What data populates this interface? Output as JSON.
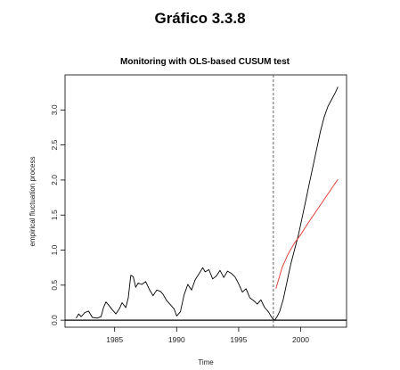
{
  "figure_title": "Gráfico 3.3.8",
  "chart_data": {
    "type": "line",
    "title": "Monitoring with OLS-based CUSUM test",
    "xlabel": "Time",
    "ylabel": "empirical fluctuation process",
    "xlim": [
      1981.0,
      2003.7
    ],
    "ylim": [
      -0.1,
      3.5
    ],
    "x_ticks": [
      1985,
      1990,
      1995,
      2000
    ],
    "x_tick_labels": [
      "1985",
      "1990",
      "1995",
      "2000"
    ],
    "y_ticks": [
      0.0,
      0.5,
      1.0,
      1.5,
      2.0,
      2.5,
      3.0
    ],
    "y_tick_labels": [
      "0.0",
      "0.5",
      "1.0",
      "1.5",
      "2.0",
      "2.5",
      "3.0"
    ],
    "grid": false,
    "legend": "none",
    "reference_lines": [
      {
        "orientation": "horizontal",
        "y": 0.0,
        "style": "solid",
        "color": "#000000"
      },
      {
        "orientation": "vertical",
        "x": 1997.8,
        "style": "dashed",
        "color": "#555555"
      }
    ],
    "series": [
      {
        "color": "#000000",
        "x": [
          1981.9,
          1982.1,
          1982.3,
          1982.6,
          1982.9,
          1983.2,
          1983.6,
          1983.9,
          1984.1,
          1984.3,
          1984.5,
          1984.8,
          1985.1,
          1985.4,
          1985.6,
          1985.9,
          1986.1,
          1986.3,
          1986.5,
          1986.7,
          1986.9,
          1987.2,
          1987.5,
          1987.8,
          1988.1,
          1988.4,
          1988.7,
          1988.9,
          1989.2,
          1989.5,
          1989.8,
          1990.0,
          1990.3,
          1990.6,
          1990.9,
          1991.2,
          1991.5,
          1991.8,
          1992.1,
          1992.3,
          1992.6,
          1992.9,
          1993.2,
          1993.5,
          1993.8,
          1994.1,
          1994.4,
          1994.7,
          1995.0,
          1995.3,
          1995.6,
          1995.9,
          1996.2,
          1996.5,
          1996.8,
          1997.1,
          1997.4,
          1997.7,
          1997.9,
          1998.1,
          1998.3,
          1998.6,
          1998.9,
          1999.2,
          1999.5,
          1999.8,
          2000.1,
          2000.4,
          2000.7,
          2001.0,
          2001.3,
          2001.6,
          2001.9,
          2002.2,
          2002.5,
          2002.8,
          2003.0
        ],
        "values": [
          0.03,
          0.09,
          0.05,
          0.11,
          0.13,
          0.04,
          0.03,
          0.05,
          0.18,
          0.26,
          0.22,
          0.15,
          0.09,
          0.17,
          0.25,
          0.18,
          0.32,
          0.64,
          0.62,
          0.47,
          0.53,
          0.51,
          0.55,
          0.44,
          0.35,
          0.43,
          0.41,
          0.37,
          0.28,
          0.22,
          0.16,
          0.06,
          0.12,
          0.36,
          0.51,
          0.43,
          0.58,
          0.66,
          0.75,
          0.69,
          0.72,
          0.59,
          0.63,
          0.71,
          0.61,
          0.7,
          0.67,
          0.62,
          0.52,
          0.4,
          0.45,
          0.32,
          0.28,
          0.23,
          0.29,
          0.18,
          0.12,
          0.03,
          0.0,
          0.05,
          0.12,
          0.3,
          0.55,
          0.8,
          1.0,
          1.2,
          1.45,
          1.7,
          1.95,
          2.2,
          2.45,
          2.7,
          2.9,
          3.05,
          3.15,
          3.25,
          3.33
        ]
      },
      {
        "color": "#e0352b",
        "x": [
          1998.0,
          1998.5,
          1999.0,
          1999.5,
          2000.0,
          2000.5,
          2001.0,
          2001.5,
          2002.0,
          2002.5,
          2003.0
        ],
        "values": [
          0.45,
          0.75,
          0.95,
          1.1,
          1.22,
          1.36,
          1.49,
          1.62,
          1.75,
          1.88,
          2.01
        ]
      }
    ]
  }
}
